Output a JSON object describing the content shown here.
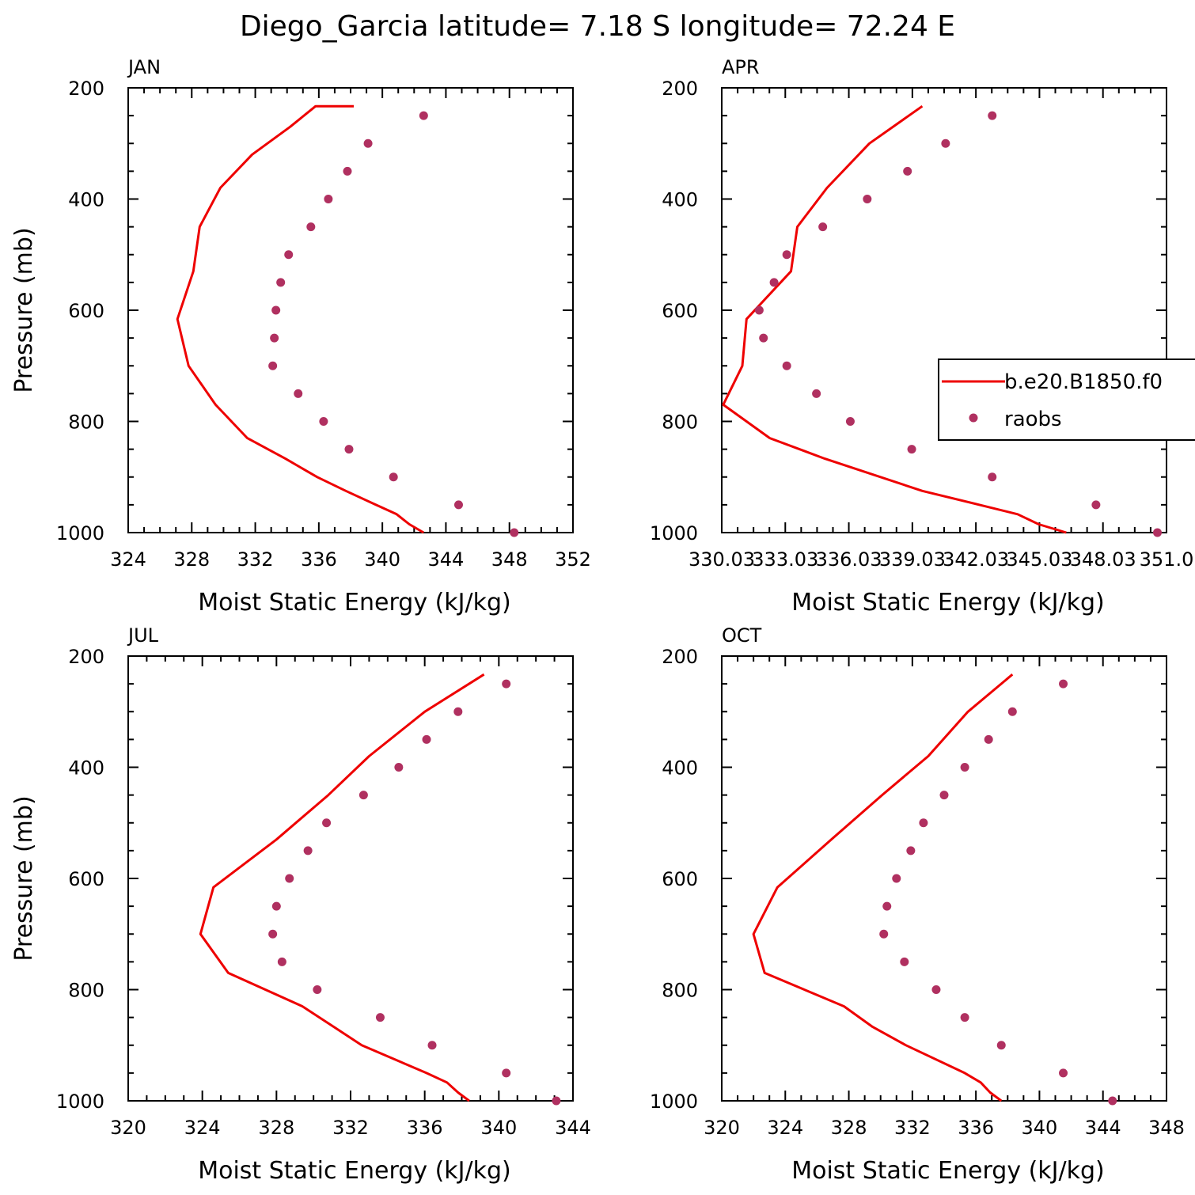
{
  "figure_title": "Diego_Garcia  latitude= 7.18 S longitude= 72.24 E",
  "colors": {
    "model": "#ee0000",
    "obs": "#b03060",
    "axis": "#000000"
  },
  "legend": {
    "model_label": "b.e20.B1850.f0",
    "obs_label": "raobs",
    "placement": "right side of APR panel, clipped by figure edge"
  },
  "chart_data": [
    {
      "type": "line",
      "title": "JAN",
      "xlabel": "Moist Static Energy (kJ/kg)",
      "ylabel": "Pressure (mb)",
      "xlim": [
        324,
        352
      ],
      "ylim": [
        1000,
        200
      ],
      "y_inverted": true,
      "xticks": [
        324,
        328,
        332,
        336,
        340,
        344,
        348,
        352
      ],
      "xtick_labels": [
        "324",
        "328",
        "332",
        "336",
        "340",
        "344",
        "348",
        "352"
      ],
      "yticks": [
        200,
        400,
        600,
        800,
        1000
      ],
      "ytick_labels": [
        "200",
        "400",
        "600",
        "800",
        "1000"
      ],
      "series": [
        {
          "name": "b.e20.B1850.f0",
          "kind": "line",
          "x": [
            342.6,
            341.7,
            340.9,
            339.6,
            337.7,
            335.9,
            333.9,
            331.5,
            329.5,
            327.8,
            327.1,
            328.1,
            328.5,
            329.8,
            331.8,
            334.2,
            335.8,
            338.2
          ],
          "y": [
            1000,
            985,
            967,
            950,
            925,
            900,
            867,
            830,
            770,
            700,
            616,
            530,
            450,
            380,
            320,
            270,
            233,
            233
          ]
        },
        {
          "name": "raobs",
          "kind": "scatter",
          "x": [
            348.3,
            344.8,
            340.7,
            337.9,
            336.3,
            334.7,
            333.1,
            333.2,
            333.3,
            333.6,
            334.1,
            335.5,
            336.6,
            337.8,
            339.1,
            342.6
          ],
          "y": [
            1000,
            950,
            900,
            850,
            800,
            750,
            700,
            650,
            600,
            550,
            500,
            450,
            400,
            350,
            300,
            250
          ]
        }
      ]
    },
    {
      "type": "line",
      "title": "APR",
      "xlabel": "Moist Static Energy (kJ/kg)",
      "ylabel": "",
      "xlim": [
        330.03,
        351.03
      ],
      "ylim": [
        1000,
        200
      ],
      "y_inverted": true,
      "xticks": [
        330.03,
        333.03,
        336.03,
        339.03,
        342.03,
        345.03,
        348.03,
        351.03
      ],
      "xtick_labels": [
        "330.03",
        "333.03",
        "336.03",
        "339.03",
        "342.03",
        "345.03",
        "348.03",
        "351.0"
      ],
      "yticks": [
        200,
        400,
        600,
        800,
        1000
      ],
      "ytick_labels": [
        "200",
        "400",
        "600",
        "800",
        "1000"
      ],
      "series": [
        {
          "name": "b.e20.B1850.f0",
          "kind": "line",
          "x": [
            346.3,
            345.0,
            344.0,
            342.2,
            339.5,
            334.9,
            332.3,
            330.1,
            331.0,
            331.2,
            333.3,
            333.6,
            335.0,
            337.0,
            339.5
          ],
          "y": [
            1000,
            985,
            967,
            950,
            925,
            867,
            830,
            770,
            700,
            616,
            530,
            450,
            380,
            300,
            233
          ]
        },
        {
          "name": "raobs",
          "kind": "scatter",
          "x": [
            350.6,
            347.7,
            342.8,
            339.0,
            336.1,
            334.5,
            333.1,
            332.0,
            331.8,
            332.5,
            333.1,
            334.8,
            336.9,
            338.8,
            340.6,
            342.8
          ],
          "y": [
            1000,
            950,
            900,
            850,
            800,
            750,
            700,
            650,
            600,
            550,
            500,
            450,
            400,
            350,
            300,
            250
          ]
        }
      ]
    },
    {
      "type": "line",
      "title": "JUL",
      "xlabel": "Moist Static Energy (kJ/kg)",
      "ylabel": "Pressure (mb)",
      "xlim": [
        320,
        344
      ],
      "ylim": [
        1000,
        200
      ],
      "y_inverted": true,
      "xticks": [
        320,
        324,
        328,
        332,
        336,
        340,
        344
      ],
      "xtick_labels": [
        "320",
        "324",
        "328",
        "332",
        "336",
        "340",
        "344"
      ],
      "yticks": [
        200,
        400,
        600,
        800,
        1000
      ],
      "ytick_labels": [
        "200",
        "400",
        "600",
        "800",
        "1000"
      ],
      "series": [
        {
          "name": "b.e20.B1850.f0",
          "kind": "line",
          "x": [
            338.4,
            337.8,
            337.2,
            336.1,
            332.6,
            331.1,
            329.4,
            325.4,
            323.9,
            324.6,
            328.0,
            330.8,
            333.0,
            336.0,
            339.2
          ],
          "y": [
            1000,
            985,
            967,
            950,
            900,
            867,
            830,
            770,
            700,
            616,
            530,
            450,
            380,
            300,
            233
          ]
        },
        {
          "name": "raobs",
          "kind": "scatter",
          "x": [
            343.1,
            340.4,
            336.4,
            333.6,
            330.2,
            328.3,
            327.8,
            328.0,
            328.7,
            329.7,
            330.7,
            332.7,
            334.6,
            336.1,
            337.8,
            340.4
          ],
          "y": [
            1000,
            950,
            900,
            850,
            800,
            750,
            700,
            650,
            600,
            550,
            500,
            450,
            400,
            350,
            300,
            250
          ]
        }
      ]
    },
    {
      "type": "line",
      "title": "OCT",
      "xlabel": "Moist Static Energy (kJ/kg)",
      "ylabel": "",
      "xlim": [
        320,
        348
      ],
      "ylim": [
        1000,
        200
      ],
      "y_inverted": true,
      "xticks": [
        320,
        324,
        328,
        332,
        336,
        340,
        344,
        348
      ],
      "xtick_labels": [
        "320",
        "324",
        "328",
        "332",
        "336",
        "340",
        "344",
        "348"
      ],
      "yticks": [
        200,
        400,
        600,
        800,
        1000
      ],
      "ytick_labels": [
        "200",
        "400",
        "600",
        "800",
        "1000"
      ],
      "series": [
        {
          "name": "b.e20.B1850.f0",
          "kind": "line",
          "x": [
            337.6,
            336.9,
            336.3,
            335.3,
            331.6,
            329.5,
            327.7,
            322.7,
            322.0,
            323.5,
            326.9,
            330.1,
            333.0,
            335.5,
            338.3
          ],
          "y": [
            1000,
            985,
            967,
            950,
            900,
            867,
            830,
            770,
            700,
            616,
            530,
            450,
            380,
            300,
            233
          ]
        },
        {
          "name": "raobs",
          "kind": "scatter",
          "x": [
            344.6,
            341.5,
            337.6,
            335.3,
            333.5,
            331.5,
            330.2,
            330.4,
            331.0,
            331.9,
            332.7,
            334.0,
            335.3,
            336.8,
            338.3,
            341.5
          ],
          "y": [
            1000,
            950,
            900,
            850,
            800,
            750,
            700,
            650,
            600,
            550,
            500,
            450,
            400,
            350,
            300,
            250
          ]
        }
      ]
    }
  ]
}
